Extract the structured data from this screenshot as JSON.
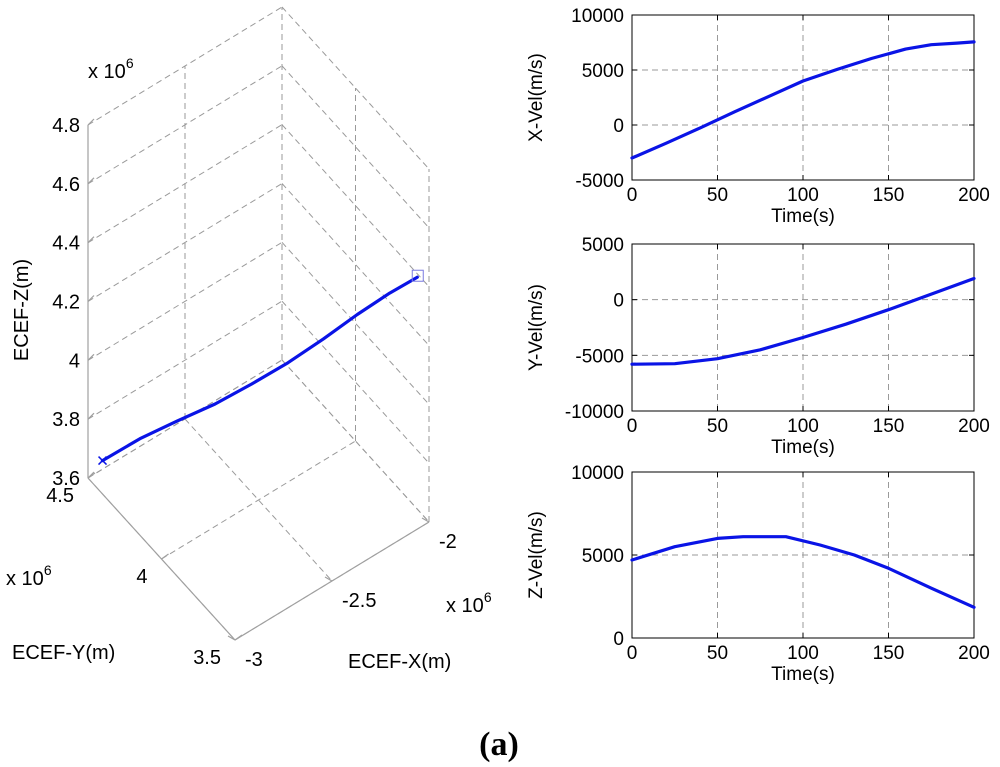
{
  "caption": {
    "open": "(",
    "letter": "a",
    "close": ")"
  },
  "colors": {
    "line": "#0a14e6",
    "grid": "#9a9a9a",
    "axis": "#000000",
    "box": "#a0a0a0"
  },
  "chart_data": [
    {
      "id": "trajectory3d",
      "type": "line",
      "projection": "3d",
      "title": "",
      "xlabel": "ECEF-X(m)",
      "ylabel": "ECEF-Y(m)",
      "zlabel": "ECEF-Z(m)",
      "x_multiplier": "x 10",
      "y_multiplier": "x 10",
      "z_multiplier": "x 10",
      "exponent": "6",
      "xlim": [
        -3.0,
        -2.0
      ],
      "ylim": [
        3.5,
        4.5
      ],
      "zlim": [
        3.6,
        4.8
      ],
      "x_ticks": [
        -3,
        -2.5,
        -2
      ],
      "x_tick_labels": [
        "-3",
        "-2.5",
        "-2"
      ],
      "y_ticks": [
        3.5,
        4,
        4.5
      ],
      "y_tick_labels": [
        "3.5",
        "4",
        "4.5"
      ],
      "z_ticks": [
        3.6,
        3.8,
        4.0,
        4.2,
        4.4,
        4.6,
        4.8
      ],
      "z_tick_labels": [
        "3.6",
        "3.8",
        "4",
        "4.2",
        "4.4",
        "4.6",
        "4.8"
      ],
      "grid": true,
      "start_marker": "x",
      "end_marker": "square",
      "series": [
        {
          "name": "trajectory",
          "x": [
            -2.963,
            -2.88,
            -2.8,
            -2.72,
            -2.64,
            -2.56,
            -2.48,
            -2.4,
            -2.32,
            -2.25
          ],
          "y": [
            4.45,
            4.305,
            4.16,
            4.005,
            3.86,
            3.72,
            3.585,
            3.46,
            3.345,
            3.25
          ],
          "z": [
            3.672,
            3.793,
            3.9,
            4.012,
            4.128,
            4.245,
            4.368,
            4.488,
            4.592,
            4.67
          ]
        }
      ]
    },
    {
      "id": "xvel",
      "type": "line",
      "title": "",
      "xlabel": "Time(s)",
      "ylabel": "X-Vel(m/s)",
      "xlim": [
        0,
        200
      ],
      "ylim": [
        -5000,
        10000
      ],
      "x_ticks": [
        0,
        50,
        100,
        150,
        200
      ],
      "x_tick_labels": [
        "0",
        "50",
        "100",
        "150",
        "200"
      ],
      "y_ticks": [
        -5000,
        0,
        5000,
        10000
      ],
      "y_tick_labels": [
        "-5000",
        "0",
        "5000",
        "10000"
      ],
      "grid": true,
      "series": [
        {
          "name": "X-Vel",
          "x": [
            0,
            20,
            40,
            60,
            80,
            100,
            120,
            140,
            160,
            175,
            190,
            200
          ],
          "y": [
            -3000,
            -1650,
            -250,
            1200,
            2600,
            4000,
            5050,
            6050,
            6900,
            7300,
            7450,
            7550
          ]
        }
      ]
    },
    {
      "id": "yvel",
      "type": "line",
      "title": "",
      "xlabel": "Time(s)",
      "ylabel": "Y-Vel(m/s)",
      "xlim": [
        0,
        200
      ],
      "ylim": [
        -10000,
        5000
      ],
      "x_ticks": [
        0,
        50,
        100,
        150,
        200
      ],
      "x_tick_labels": [
        "0",
        "50",
        "100",
        "150",
        "200"
      ],
      "y_ticks": [
        -10000,
        -5000,
        0,
        5000
      ],
      "y_tick_labels": [
        "-10000",
        "-5000",
        "0",
        "5000"
      ],
      "grid": true,
      "series": [
        {
          "name": "Y-Vel",
          "x": [
            0,
            25,
            50,
            75,
            100,
            125,
            150,
            175,
            200
          ],
          "y": [
            -5800,
            -5750,
            -5300,
            -4500,
            -3400,
            -2200,
            -900,
            500,
            1900
          ]
        }
      ]
    },
    {
      "id": "zvel",
      "type": "line",
      "title": "",
      "xlabel": "Time(s)",
      "ylabel": "Z-Vel(m/s)",
      "xlim": [
        0,
        200
      ],
      "ylim": [
        0,
        10000
      ],
      "x_ticks": [
        0,
        50,
        100,
        150,
        200
      ],
      "x_tick_labels": [
        "0",
        "50",
        "100",
        "150",
        "200"
      ],
      "y_ticks": [
        0,
        5000,
        10000
      ],
      "y_tick_labels": [
        "0",
        "5000",
        "10000"
      ],
      "grid": true,
      "series": [
        {
          "name": "Z-Vel",
          "x": [
            0,
            25,
            50,
            65,
            90,
            110,
            130,
            150,
            175,
            200
          ],
          "y": [
            4700,
            5500,
            6000,
            6100,
            6100,
            5600,
            5000,
            4200,
            3000,
            1850
          ]
        }
      ]
    }
  ]
}
